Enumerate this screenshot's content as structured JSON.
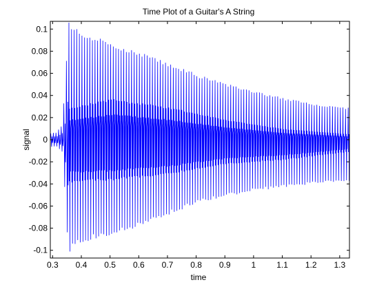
{
  "chart_data": {
    "type": "line",
    "title": "Time Plot of a Guitar's A String",
    "xlabel": "time",
    "ylabel": "signal",
    "xlim": [
      0.292,
      1.334
    ],
    "ylim": [
      -0.107,
      0.107
    ],
    "x_ticks": [
      0.3,
      0.4,
      0.5,
      0.6,
      0.7,
      0.8,
      0.9,
      1,
      1.1,
      1.2,
      1.3
    ],
    "x_tick_labels": [
      "0.3",
      "0.4",
      "0.5",
      "0.6",
      "0.7",
      "0.8",
      "0.9",
      "1",
      "1.1",
      "1.2",
      "1.3"
    ],
    "y_ticks": [
      -0.1,
      -0.08,
      -0.06,
      -0.04,
      -0.02,
      0,
      0.02,
      0.04,
      0.06,
      0.08,
      0.1
    ],
    "y_tick_labels": [
      "-0.1",
      "-0.08",
      "-0.06",
      "-0.04",
      "-0.02",
      "0",
      "0.02",
      "0.04",
      "0.06",
      "0.08",
      "0.1"
    ],
    "grid": false,
    "legend": "none",
    "series_color": "#0000ff",
    "signal": {
      "onset_time": 0.35,
      "frequency_hz": 110,
      "peak_envelope": [
        {
          "t": 0.31,
          "upper": 0.006,
          "lower": -0.006
        },
        {
          "t": 0.33,
          "upper": 0.012,
          "lower": -0.012
        },
        {
          "t": 0.345,
          "upper": 0.05,
          "lower": -0.07
        },
        {
          "t": 0.35,
          "upper": 0.105,
          "lower": -0.107
        },
        {
          "t": 0.36,
          "upper": 0.102,
          "lower": -0.093
        },
        {
          "t": 0.4,
          "upper": 0.094,
          "lower": -0.09
        },
        {
          "t": 0.5,
          "upper": 0.086,
          "lower": -0.084
        },
        {
          "t": 0.6,
          "upper": 0.078,
          "lower": -0.076
        },
        {
          "t": 0.7,
          "upper": 0.068,
          "lower": -0.066
        },
        {
          "t": 0.8,
          "upper": 0.058,
          "lower": -0.056
        },
        {
          "t": 0.9,
          "upper": 0.05,
          "lower": -0.05
        },
        {
          "t": 1.0,
          "upper": 0.043,
          "lower": -0.045
        },
        {
          "t": 1.1,
          "upper": 0.037,
          "lower": -0.042
        },
        {
          "t": 1.2,
          "upper": 0.032,
          "lower": -0.039
        },
        {
          "t": 1.334,
          "upper": 0.028,
          "lower": -0.036
        }
      ],
      "core_envelope": [
        {
          "t": 0.35,
          "upper": 0.035,
          "lower": -0.042
        },
        {
          "t": 0.5,
          "upper": 0.045,
          "lower": -0.04
        },
        {
          "t": 0.7,
          "upper": 0.036,
          "lower": -0.034
        },
        {
          "t": 0.9,
          "upper": 0.022,
          "lower": -0.024
        },
        {
          "t": 1.1,
          "upper": 0.012,
          "lower": -0.02
        },
        {
          "t": 1.334,
          "upper": 0.006,
          "lower": -0.012
        }
      ]
    }
  }
}
